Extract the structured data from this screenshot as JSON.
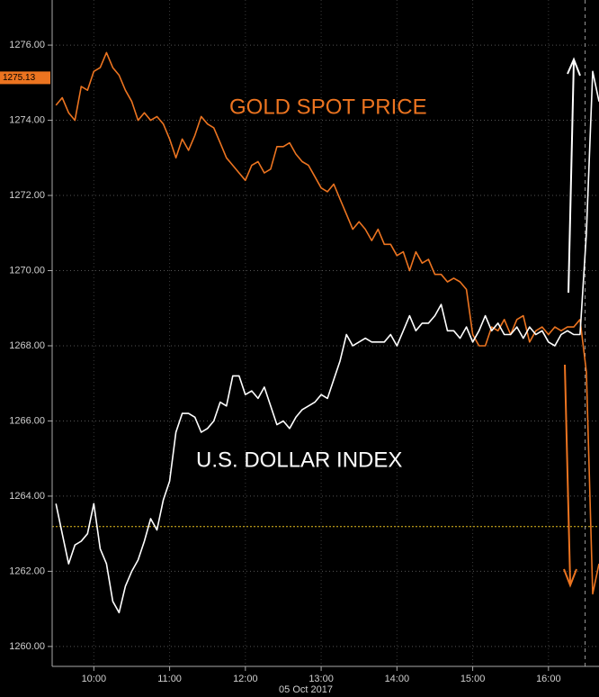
{
  "chart_data": {
    "type": "line",
    "xlabel": "05 Oct 2017",
    "annotations": [
      "GOLD SPOT PRICE",
      "U.S. DOLLAR INDEX"
    ],
    "last_price": 1275.13,
    "reference_line": 1263.19,
    "now_line": 989,
    "grid": true,
    "xlim": [
      567,
      1000
    ],
    "ylim": [
      1259.47,
      1277.2
    ],
    "xticks": [
      {
        "value": 600,
        "label": "10:00"
      },
      {
        "value": 660,
        "label": "11:00"
      },
      {
        "value": 720,
        "label": "12:00"
      },
      {
        "value": 780,
        "label": "13:00"
      },
      {
        "value": 840,
        "label": "14:00"
      },
      {
        "value": 900,
        "label": "15:00"
      },
      {
        "value": 960,
        "label": "16:00"
      }
    ],
    "yticks": [
      {
        "value": 1260,
        "label": "1260.00"
      },
      {
        "value": 1262,
        "label": "1262.00"
      },
      {
        "value": 1264,
        "label": "1264.00"
      },
      {
        "value": 1266,
        "label": "1266.00"
      },
      {
        "value": 1268,
        "label": "1268.00"
      },
      {
        "value": 1270,
        "label": "1270.00"
      },
      {
        "value": 1272,
        "label": "1272.00"
      },
      {
        "value": 1274,
        "label": "1274.00"
      },
      {
        "value": 1276,
        "label": "1276.00"
      }
    ],
    "x": [
      570,
      575,
      580,
      585,
      590,
      595,
      600,
      605,
      610,
      615,
      620,
      625,
      630,
      635,
      640,
      645,
      650,
      655,
      660,
      665,
      670,
      675,
      680,
      685,
      690,
      695,
      700,
      705,
      710,
      715,
      720,
      725,
      730,
      735,
      740,
      745,
      750,
      755,
      760,
      765,
      770,
      775,
      780,
      785,
      790,
      795,
      800,
      805,
      810,
      815,
      820,
      825,
      830,
      835,
      840,
      845,
      850,
      855,
      860,
      865,
      870,
      875,
      880,
      885,
      890,
      895,
      900,
      905,
      910,
      915,
      920,
      925,
      930,
      935,
      940,
      945,
      950,
      955,
      960,
      965,
      970,
      975,
      980,
      985,
      990,
      995,
      1000
    ],
    "series": [
      {
        "color": "#ec7420",
        "values": [
          1274.4,
          1274.6,
          1274.2,
          1274.0,
          1274.9,
          1274.8,
          1275.3,
          1275.4,
          1275.8,
          1275.4,
          1275.2,
          1274.8,
          1274.5,
          1274.0,
          1274.2,
          1274.0,
          1274.1,
          1273.9,
          1273.5,
          1273.0,
          1273.5,
          1273.2,
          1273.6,
          1274.1,
          1273.9,
          1273.8,
          1273.4,
          1273.0,
          1272.8,
          1272.6,
          1272.4,
          1272.8,
          1272.9,
          1272.6,
          1272.7,
          1273.3,
          1273.3,
          1273.4,
          1273.1,
          1272.9,
          1272.8,
          1272.5,
          1272.2,
          1272.1,
          1272.3,
          1271.9,
          1271.5,
          1271.1,
          1271.3,
          1271.1,
          1270.8,
          1271.1,
          1270.7,
          1270.7,
          1270.4,
          1270.5,
          1270.0,
          1270.5,
          1270.2,
          1270.3,
          1269.9,
          1269.9,
          1269.7,
          1269.8,
          1269.7,
          1269.5,
          1268.3,
          1268.0,
          1268.0,
          1268.5,
          1268.4,
          1268.7,
          1268.3,
          1268.7,
          1268.8,
          1268.1,
          1268.4,
          1268.5,
          1268.3,
          1268.5,
          1268.4,
          1268.5,
          1268.5,
          1268.7,
          1267.3,
          1261.4,
          1262.2
        ]
      },
      {
        "color": "#ffffff",
        "values": [
          1263.8,
          1263.0,
          1262.2,
          1262.7,
          1262.8,
          1263.0,
          1263.8,
          1262.6,
          1262.2,
          1261.2,
          1260.9,
          1261.6,
          1262.0,
          1262.3,
          1262.8,
          1263.4,
          1263.1,
          1263.9,
          1264.4,
          1265.7,
          1266.2,
          1266.2,
          1266.1,
          1265.7,
          1265.8,
          1266.0,
          1266.5,
          1266.4,
          1267.2,
          1267.2,
          1266.7,
          1266.8,
          1266.6,
          1266.9,
          1266.4,
          1265.9,
          1266.0,
          1265.8,
          1266.1,
          1266.3,
          1266.4,
          1266.5,
          1266.7,
          1266.6,
          1267.1,
          1267.6,
          1268.3,
          1268.0,
          1268.1,
          1268.2,
          1268.1,
          1268.1,
          1268.1,
          1268.3,
          1268.0,
          1268.4,
          1268.8,
          1268.4,
          1268.6,
          1268.6,
          1268.8,
          1269.1,
          1268.4,
          1268.4,
          1268.2,
          1268.5,
          1268.1,
          1268.4,
          1268.8,
          1268.4,
          1268.6,
          1268.3,
          1268.3,
          1268.5,
          1268.2,
          1268.5,
          1268.3,
          1268.4,
          1268.1,
          1268.0,
          1268.3,
          1268.4,
          1268.3,
          1268.3,
          1271.0,
          1275.3,
          1274.5
        ]
      }
    ]
  }
}
